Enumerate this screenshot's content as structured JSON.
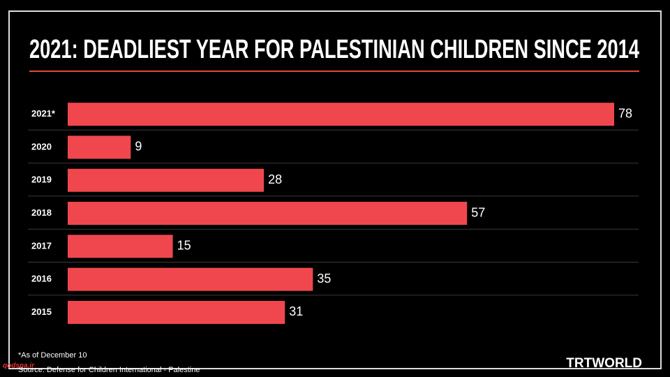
{
  "chart_data": {
    "type": "bar",
    "orientation": "horizontal",
    "title": "2021: DEADLIEST YEAR FOR PALESTINIAN CHILDREN SINCE 2014",
    "categories": [
      "2021*",
      "2020",
      "2019",
      "2018",
      "2017",
      "2016",
      "2015"
    ],
    "values": [
      78,
      9,
      28,
      57,
      15,
      35,
      31
    ],
    "color": "#f0474e",
    "footnote": "*As of December 10",
    "source": "Source: Defense for Children International - Palestine",
    "logo": "TRTWORLD",
    "watermark": "qodsna.ir"
  }
}
